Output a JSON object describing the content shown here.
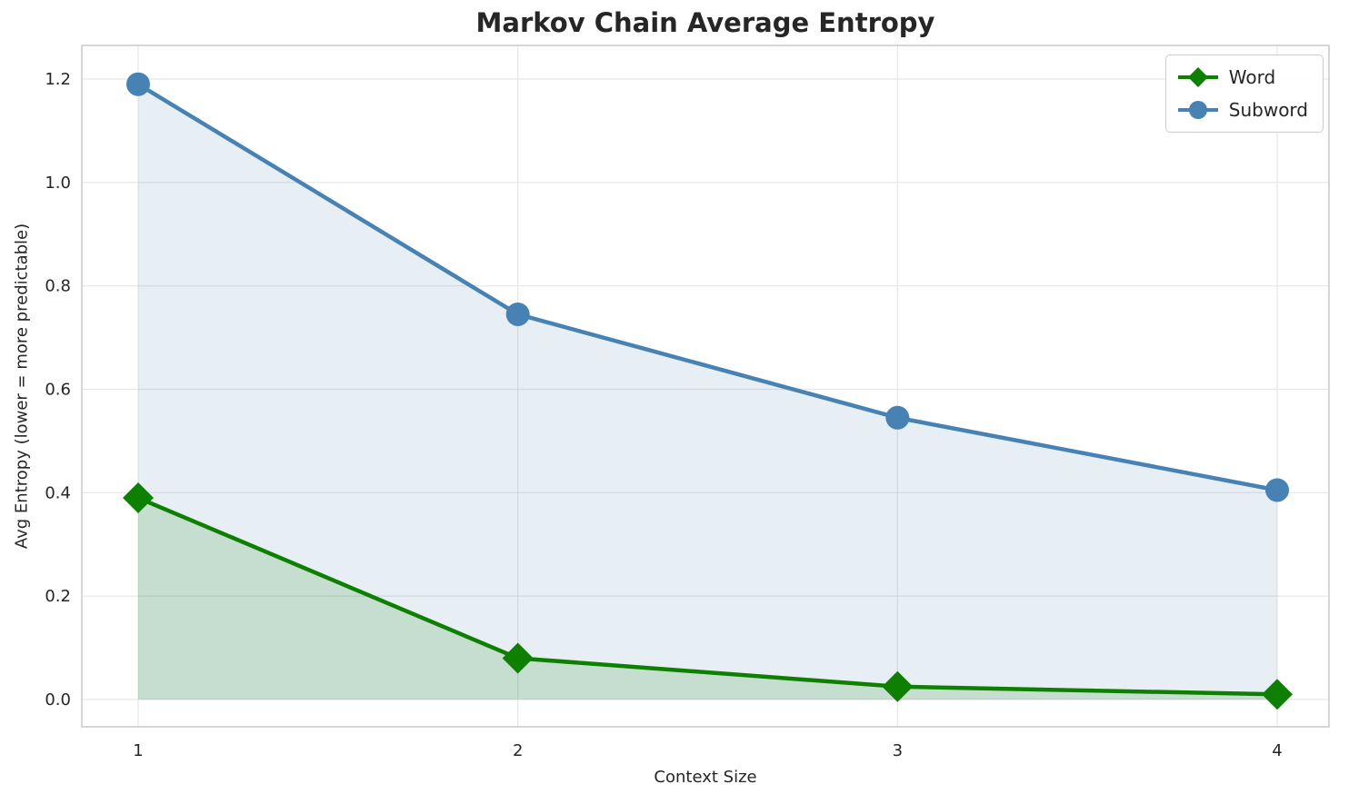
{
  "chart_data": {
    "type": "line",
    "title": "Markov Chain Average Entropy",
    "xlabel": "Context Size",
    "ylabel": "Avg Entropy (lower = more predictable)",
    "x": [
      1,
      2,
      3,
      4
    ],
    "x_tick_labels": [
      "1",
      "2",
      "3",
      "4"
    ],
    "y_ticks": [
      0.0,
      0.2,
      0.4,
      0.6,
      0.8,
      1.0,
      1.2
    ],
    "y_tick_labels": [
      "0.0",
      "0.2",
      "0.4",
      "0.6",
      "0.8",
      "1.0",
      "1.2"
    ],
    "xlim": [
      1,
      4
    ],
    "ylim": [
      0,
      1.2
    ],
    "grid": true,
    "legend_position": "upper right",
    "series": [
      {
        "name": "Word",
        "marker": "diamond",
        "color": "#0e8000",
        "fill_opacity": 0.15,
        "values": [
          0.39,
          0.08,
          0.025,
          0.01
        ]
      },
      {
        "name": "Subword",
        "marker": "circle",
        "color": "#4682b4",
        "fill_opacity": 0.13,
        "values": [
          1.19,
          0.745,
          0.545,
          0.405
        ]
      }
    ]
  }
}
